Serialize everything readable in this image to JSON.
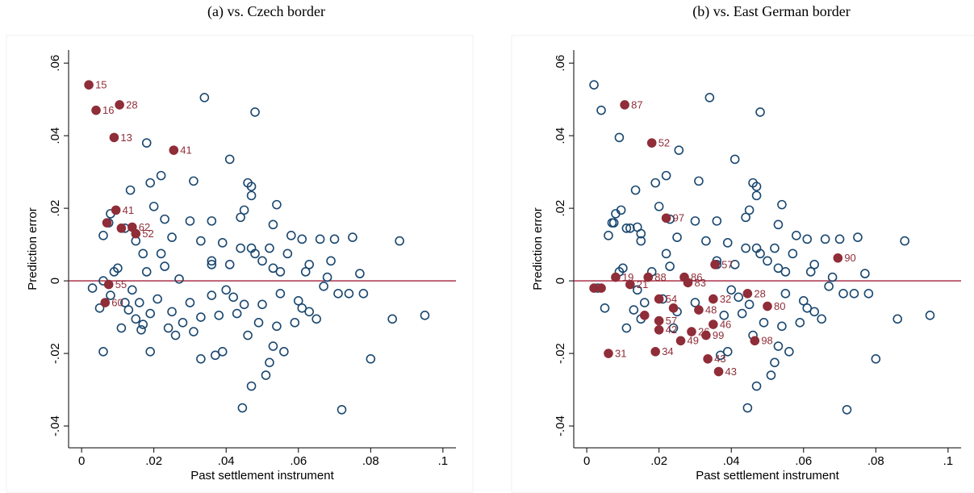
{
  "chart_data": [
    {
      "type": "scatter",
      "title": "(a) vs. Czech border",
      "x_label": "Past settlement instrument",
      "y_label": "Prediction error",
      "xlim": [
        -0.0036,
        0.1036
      ],
      "ylim": [
        -0.046,
        0.0636
      ],
      "xticks": [
        0,
        {
          "value": 0.02,
          "label": ".02"
        },
        {
          "value": 0.04,
          "label": ".04"
        },
        {
          "value": 0.06,
          "label": ".06"
        },
        {
          "value": 0.08,
          "label": ".08"
        },
        {
          "value": 0.1,
          "label": ".1"
        }
      ],
      "yticks": [
        {
          "value": -0.04,
          "label": "-.04"
        },
        {
          "value": -0.02,
          "label": "-.02"
        },
        0,
        {
          "value": 0.02,
          "label": ".02"
        },
        {
          "value": 0.04,
          "label": ".04"
        },
        {
          "value": 0.06,
          "label": ".06"
        }
      ],
      "hline": 0,
      "hline_color": "#a3203a",
      "series": [
        {
          "color": "#1a476f",
          "marker": "hollow",
          "x": [
            0.034,
            0.048,
            0.018,
            0.041,
            0.022,
            0.031,
            0.019,
            0.046,
            0.047,
            0.0135,
            0.047,
            0.054,
            0.02,
            0.008,
            0.045,
            0.044,
            0.053,
            0.012,
            0.023,
            0.03,
            0.036,
            0.0075,
            0.015,
            0.006,
            0.025,
            0.033,
            0.039,
            0.061,
            0.066,
            0.07,
            0.075,
            0.088,
            0.058,
            0.044,
            0.047,
            0.048,
            0.05,
            0.052,
            0.057,
            0.041,
            0.036,
            0.022,
            0.017,
            0.018,
            0.01,
            0.023,
            0.027,
            0.036,
            0.053,
            0.055,
            0.063,
            0.069,
            0.068,
            0.077,
            0.062,
            0.005,
            0.011,
            0.013,
            0.016,
            0.017,
            0.019,
            0.021,
            0.024,
            0.025,
            0.028,
            0.03,
            0.031,
            0.033,
            0.036,
            0.038,
            0.039,
            0.04,
            0.042,
            0.043,
            0.045,
            0.046,
            0.047,
            0.049,
            0.05,
            0.051,
            0.052,
            0.053,
            0.054,
            0.055,
            0.056,
            0.059,
            0.06,
            0.061,
            0.063,
            0.065,
            0.067,
            0.071,
            0.074,
            0.078,
            0.08,
            0.086,
            0.095,
            0.072,
            0.0445,
            0.037,
            0.033,
            0.026,
            0.014,
            0.008,
            0.006,
            0.003,
            0.009,
            0.012,
            0.015,
            0.0165,
            0.019,
            0.006
          ],
          "y": [
            0.0505,
            0.0465,
            0.038,
            0.0335,
            0.029,
            0.0275,
            0.027,
            0.027,
            0.026,
            0.025,
            0.0235,
            0.021,
            0.0205,
            0.0185,
            0.0195,
            0.0175,
            0.0155,
            0.0145,
            0.017,
            0.0165,
            0.0165,
            0.016,
            0.011,
            0.0125,
            0.012,
            0.011,
            0.0105,
            0.0115,
            0.0115,
            0.0115,
            0.012,
            0.011,
            0.0125,
            0.009,
            0.009,
            0.0075,
            0.0055,
            0.009,
            0.0075,
            0.0045,
            0.0055,
            0.0075,
            0.0075,
            0.0025,
            0.0035,
            0.004,
            0.0005,
            0.0045,
            0.0035,
            0.0025,
            0.0045,
            0.0055,
            0.001,
            0.002,
            0.0025,
            -0.0075,
            -0.013,
            -0.008,
            -0.006,
            -0.012,
            -0.009,
            -0.005,
            -0.013,
            -0.0085,
            -0.0115,
            -0.006,
            -0.014,
            -0.01,
            -0.004,
            -0.0095,
            -0.0195,
            -0.0025,
            -0.0045,
            -0.009,
            -0.0065,
            -0.015,
            -0.029,
            -0.0115,
            -0.0065,
            -0.026,
            -0.0225,
            -0.018,
            -0.0125,
            -0.0035,
            -0.0195,
            -0.0115,
            -0.0055,
            -0.0075,
            -0.0085,
            -0.0105,
            -0.0015,
            -0.0035,
            -0.0035,
            -0.0035,
            -0.0215,
            -0.0105,
            -0.0095,
            -0.0355,
            -0.035,
            -0.0205,
            -0.0215,
            -0.015,
            -0.0025,
            -0.004,
            0.0,
            -0.002,
            0.0025,
            -0.006,
            -0.0105,
            -0.0135,
            -0.0195,
            -0.0195
          ]
        },
        {
          "color": "#8f2d38",
          "marker": "filled",
          "x": [
            0.002,
            0.004,
            0.0105,
            0.009,
            0.0255,
            0.0095,
            0.007,
            0.011,
            0.014,
            0.015,
            0.0075,
            0.0065
          ],
          "y": [
            0.054,
            0.047,
            0.0485,
            0.0395,
            0.036,
            0.0195,
            0.016,
            0.0145,
            0.0148,
            0.013,
            -0.001,
            -0.006
          ],
          "point_labels": [
            "15",
            "16",
            "28",
            "13",
            "41",
            "41",
            null,
            "4",
            "62",
            "52",
            "55",
            "60"
          ]
        }
      ]
    },
    {
      "type": "scatter",
      "title": "(b) vs. East German border",
      "x_label": "Past settlement instrument",
      "y_label": "Prediction error",
      "xlim": [
        -0.0036,
        0.1036
      ],
      "ylim": [
        -0.046,
        0.0636
      ],
      "xticks": [
        0,
        {
          "value": 0.02,
          "label": ".02"
        },
        {
          "value": 0.04,
          "label": ".04"
        },
        {
          "value": 0.06,
          "label": ".06"
        },
        {
          "value": 0.08,
          "label": ".08"
        },
        {
          "value": 0.1,
          "label": ".1"
        }
      ],
      "yticks": [
        {
          "value": -0.04,
          "label": "-.04"
        },
        {
          "value": -0.02,
          "label": "-.02"
        },
        0,
        {
          "value": 0.02,
          "label": ".02"
        },
        {
          "value": 0.04,
          "label": ".04"
        },
        {
          "value": 0.06,
          "label": ".06"
        }
      ],
      "hline": 0,
      "hline_color": "#a3203a",
      "series": [
        {
          "color": "#1a476f",
          "marker": "hollow",
          "x": [
            0.034,
            0.048,
            0.041,
            0.022,
            0.031,
            0.019,
            0.046,
            0.047,
            0.0135,
            0.047,
            0.054,
            0.02,
            0.008,
            0.045,
            0.044,
            0.053,
            0.012,
            0.023,
            0.03,
            0.036,
            0.0075,
            0.015,
            0.006,
            0.025,
            0.033,
            0.039,
            0.061,
            0.066,
            0.07,
            0.075,
            0.088,
            0.058,
            0.044,
            0.047,
            0.048,
            0.05,
            0.052,
            0.057,
            0.041,
            0.036,
            0.022,
            0.018,
            0.01,
            0.023,
            0.036,
            0.053,
            0.055,
            0.063,
            0.068,
            0.077,
            0.062,
            0.005,
            0.011,
            0.013,
            0.016,
            0.021,
            0.024,
            0.025,
            0.03,
            0.038,
            0.039,
            0.04,
            0.042,
            0.043,
            0.045,
            0.046,
            0.047,
            0.049,
            0.051,
            0.052,
            0.053,
            0.054,
            0.055,
            0.056,
            0.059,
            0.06,
            0.061,
            0.063,
            0.065,
            0.067,
            0.071,
            0.074,
            0.078,
            0.08,
            0.086,
            0.095,
            0.072,
            0.0445,
            0.037,
            0.014,
            0.003,
            0.009,
            0.015,
            0.002,
            0.004,
            0.009,
            0.0255,
            0.0095,
            0.007,
            0.011,
            0.014,
            0.015
          ],
          "y": [
            0.0505,
            0.0465,
            0.0335,
            0.029,
            0.0275,
            0.027,
            0.027,
            0.026,
            0.025,
            0.0235,
            0.021,
            0.0205,
            0.0185,
            0.0195,
            0.0175,
            0.0155,
            0.0145,
            0.017,
            0.0165,
            0.0165,
            0.016,
            0.011,
            0.0125,
            0.012,
            0.011,
            0.0105,
            0.0115,
            0.0115,
            0.0115,
            0.012,
            0.011,
            0.0125,
            0.009,
            0.009,
            0.0075,
            0.0055,
            0.009,
            0.0075,
            0.0045,
            0.0055,
            0.0075,
            0.0025,
            0.0035,
            0.004,
            0.0045,
            0.0035,
            0.0025,
            0.0045,
            0.001,
            0.002,
            0.0025,
            -0.0075,
            -0.013,
            -0.008,
            -0.006,
            -0.005,
            -0.013,
            -0.0085,
            -0.006,
            -0.0095,
            -0.0195,
            -0.0025,
            -0.0045,
            -0.009,
            -0.0065,
            -0.015,
            -0.029,
            -0.0115,
            -0.026,
            -0.0225,
            -0.018,
            -0.0125,
            -0.0035,
            -0.0195,
            -0.0115,
            -0.0055,
            -0.0075,
            -0.0085,
            -0.0105,
            -0.0015,
            -0.0035,
            -0.0035,
            -0.0035,
            -0.0215,
            -0.0105,
            -0.0095,
            -0.0355,
            -0.035,
            -0.0205,
            -0.0025,
            -0.002,
            0.0025,
            -0.0105,
            0.054,
            0.047,
            0.0395,
            0.036,
            0.0195,
            0.016,
            0.0145,
            0.0148,
            0.013
          ]
        },
        {
          "color": "#8f2d38",
          "marker": "filled",
          "x": [
            0.0105,
            0.018,
            0.022,
            0.0355,
            0.0695,
            0.008,
            0.027,
            0.028,
            0.017,
            0.035,
            0.0445,
            0.05,
            0.031,
            0.035,
            0.033,
            0.0465,
            0.019,
            0.006,
            0.0335,
            0.0365,
            0.026,
            0.029,
            0.02,
            0.02,
            0.02,
            0.012,
            0.002,
            0.004,
            0.016,
            0.024
          ],
          "y": [
            0.0485,
            0.038,
            0.0173,
            0.0045,
            0.0063,
            0.001,
            0.001,
            -0.0005,
            0.001,
            -0.005,
            -0.0035,
            -0.007,
            -0.008,
            -0.012,
            -0.015,
            -0.0165,
            -0.0195,
            -0.02,
            -0.0215,
            -0.025,
            -0.0165,
            -0.014,
            -0.0135,
            -0.011,
            -0.005,
            -0.001,
            -0.002,
            -0.002,
            -0.0095,
            -0.0075
          ],
          "point_labels": [
            "87",
            "52",
            "97",
            "57",
            "90",
            "19",
            "86",
            "83",
            "88",
            "32",
            "28",
            "80",
            "48",
            "46",
            "99",
            "98",
            "34",
            "31",
            "43",
            "43",
            "49",
            "26",
            "42",
            "57",
            "54",
            "21",
            null,
            null,
            null,
            null
          ]
        }
      ]
    }
  ]
}
